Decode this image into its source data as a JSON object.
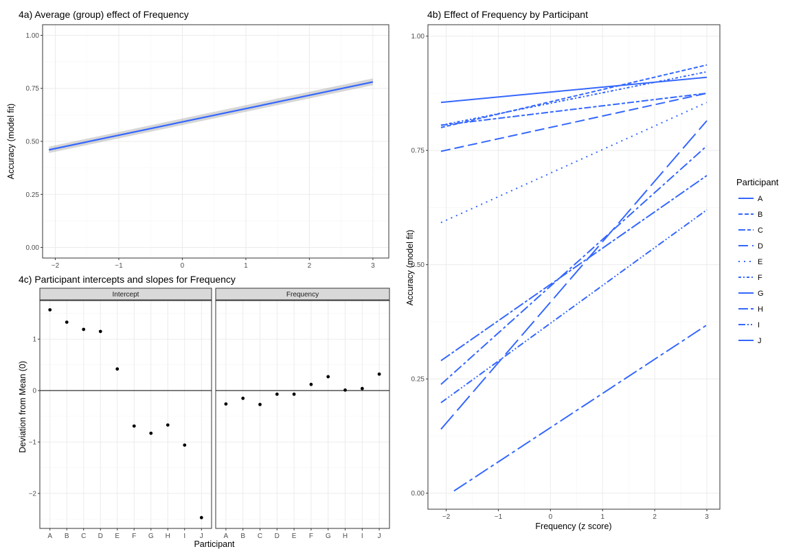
{
  "chart_data": [
    {
      "id": "4a",
      "type": "line",
      "title": "4a) Average (group) effect of Frequency",
      "xlabel": "",
      "ylabel": "Accuracy (model fit)",
      "xlim": [
        -2.2,
        3.25
      ],
      "ylim": [
        -0.05,
        1.05
      ],
      "xticks": [
        -2,
        -1,
        0,
        1,
        2,
        3
      ],
      "xtick_labels": [
        "−2",
        "−1",
        "0",
        "1",
        "2",
        "3"
      ],
      "yticks": [
        0,
        0.25,
        0.5,
        0.75,
        1.0
      ],
      "ytick_labels": [
        "0.00",
        "0.25",
        "0.50",
        "0.75",
        "1.00"
      ],
      "grid": true,
      "series": [
        {
          "x": [
            -2.1,
            3.0
          ],
          "y": [
            0.46,
            0.78
          ],
          "ribbon_low": [
            0.445,
            0.765
          ],
          "ribbon_high": [
            0.475,
            0.797
          ],
          "color": "#3366FF"
        }
      ]
    },
    {
      "id": "4b",
      "type": "line",
      "title": "4b) Effect of Frequency by Participant",
      "xlabel": "Frequency (z score)",
      "ylabel": "Accuracy (model fit)",
      "xlim": [
        -2.35,
        3.25
      ],
      "ylim": [
        -0.035,
        1.025
      ],
      "xticks": [
        -2,
        -1,
        0,
        1,
        2,
        3
      ],
      "xtick_labels": [
        "−2",
        "−1",
        "0",
        "1",
        "2",
        "3"
      ],
      "yticks": [
        0,
        0.25,
        0.5,
        0.75,
        1.0
      ],
      "ytick_labels": [
        "0.00",
        "0.25",
        "0.50",
        "0.75",
        "1.00"
      ],
      "grid": true,
      "legend_title": "Participant",
      "legend_position": "right",
      "series": [
        {
          "name": "A",
          "dash": "solid",
          "x": [
            -2.1,
            3.0
          ],
          "y": [
            0.855,
            0.91
          ]
        },
        {
          "name": "B",
          "dash": "6,3",
          "x": [
            -2.1,
            3.0
          ],
          "y": [
            0.8,
            0.937
          ]
        },
        {
          "name": "C",
          "dash": "10,3,5,3",
          "x": [
            -2.1,
            3.0
          ],
          "y": [
            0.805,
            0.875
          ]
        },
        {
          "name": "D",
          "dash": "14,6",
          "x": [
            -2.1,
            3.0
          ],
          "y": [
            0.748,
            0.875
          ]
        },
        {
          "name": "E",
          "dash": "2,6",
          "x": [
            -2.1,
            3.0
          ],
          "y": [
            0.592,
            0.855
          ]
        },
        {
          "name": "F",
          "dash": "4,3,2,3",
          "x": [
            -2.1,
            3.0
          ],
          "y": [
            0.805,
            0.922
          ]
        },
        {
          "name": "G",
          "dash": "28,8",
          "x": [
            -2.1,
            3.0
          ],
          "y": [
            0.14,
            0.815
          ]
        },
        {
          "name": "H",
          "dash": "14,4,4,4",
          "x": [
            -2.1,
            3.0
          ],
          "y": [
            0.238,
            0.76
          ]
        },
        {
          "name": "I",
          "dash": "10,3,2,3,2,3",
          "x": [
            -2.1,
            3.0
          ],
          "y": [
            0.198,
            0.62
          ]
        },
        {
          "name": "J",
          "dash": "22,5,5,5",
          "x": [
            -1.85,
            3.0
          ],
          "y": [
            0.005,
            0.368
          ]
        },
        {
          "name": "",
          "dash": "16,3,4,3",
          "x": [
            -2.1,
            3.0
          ],
          "y": [
            0.29,
            0.695
          ]
        }
      ]
    },
    {
      "id": "4c",
      "type": "scatter",
      "title": "4c) Participant intercepts and slopes for Frequency",
      "xlabel": "Participant",
      "ylabel": "Deviation from Mean (0)",
      "ylim": [
        -2.68,
        1.75
      ],
      "yticks": [
        -2,
        -1,
        0,
        1
      ],
      "ytick_labels": [
        "−2",
        "−1",
        "0",
        "1"
      ],
      "categories": [
        "A",
        "B",
        "C",
        "D",
        "E",
        "F",
        "G",
        "H",
        "I",
        "J"
      ],
      "grid": true,
      "hline": 0,
      "facets": [
        {
          "strip": "Intercept",
          "values": [
            1.57,
            1.33,
            1.19,
            1.15,
            0.42,
            -0.69,
            -0.83,
            -0.67,
            -1.06,
            -2.47
          ]
        },
        {
          "strip": "Frequency",
          "values": [
            -0.26,
            -0.15,
            -0.27,
            -0.07,
            -0.07,
            0.12,
            0.27,
            0.01,
            0.04,
            0.32
          ]
        }
      ]
    }
  ]
}
